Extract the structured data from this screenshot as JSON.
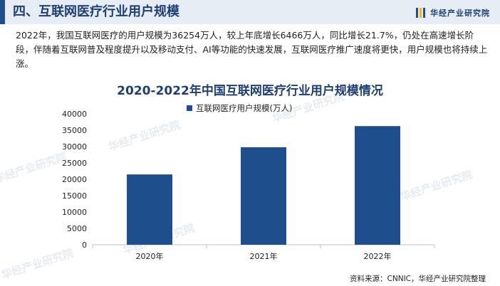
{
  "header": {
    "title": "四、互联网医疗行业用户规模"
  },
  "logo": {
    "text": "华经产业研究院",
    "icon": "bars-logo-icon",
    "colors": [
      "#1f4e8c",
      "#f5b800",
      "#1f4e8c"
    ]
  },
  "intro": {
    "text": "2022年，我国互联网医疗的用户规模为36254万人，较上年底增长6466万人，同比增长21.7%，仍处在高速增长阶段，伴随着互联网普及程度提升以及移动支付、AI等功能的快速发展，互联网医疗推广速度将更快，用户规模也将持续上涨。"
  },
  "watermark": "华经产业研究院",
  "chart_data": {
    "type": "bar",
    "title": "2020-2022年中国互联网医疗行业用户规模情况",
    "categories": [
      "2020年",
      "2021年",
      "2022年"
    ],
    "series": [
      {
        "name": "互联网医疗用户规模(万人)",
        "values": [
          21480,
          29788,
          36254
        ],
        "color": "#1f4e8c"
      }
    ],
    "ylim": [
      0,
      40000
    ],
    "yticks": [
      "0",
      "5000",
      "10000",
      "15000",
      "20000",
      "25000",
      "30000",
      "35000",
      "40000"
    ],
    "legend_position": "top-center",
    "grid": false
  },
  "footer": {
    "source": "资料来源：CNNIC，华经产业研究院整理"
  }
}
